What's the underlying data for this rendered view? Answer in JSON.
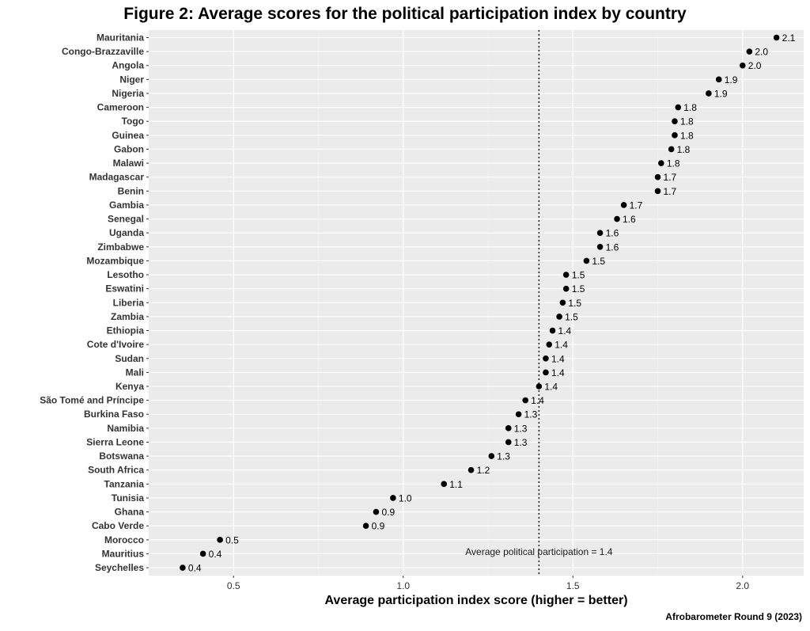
{
  "chart_data": {
    "type": "scatter",
    "title": "Figure 2: Average scores for the political participation index by country",
    "xlabel": "Average participation index score (higher = better)",
    "ylabel": "",
    "xlim": [
      0.25,
      2.18
    ],
    "xticks": [
      0.5,
      1.0,
      1.5,
      2.0
    ],
    "xtick_labels": [
      "0.5",
      "1.0",
      "1.5",
      "2.0"
    ],
    "grid": true,
    "legend": "none",
    "points": [
      {
        "country": "Mauritania",
        "value": 2.1,
        "label": "2.1"
      },
      {
        "country": "Congo-Brazzaville",
        "value": 2.02,
        "label": "2.0"
      },
      {
        "country": "Angola",
        "value": 2.0,
        "label": "2.0"
      },
      {
        "country": "Niger",
        "value": 1.93,
        "label": "1.9"
      },
      {
        "country": "Nigeria",
        "value": 1.9,
        "label": "1.9"
      },
      {
        "country": "Cameroon",
        "value": 1.81,
        "label": "1.8"
      },
      {
        "country": "Togo",
        "value": 1.8,
        "label": "1.8"
      },
      {
        "country": "Guinea",
        "value": 1.8,
        "label": "1.8"
      },
      {
        "country": "Gabon",
        "value": 1.79,
        "label": "1.8"
      },
      {
        "country": "Malawi",
        "value": 1.76,
        "label": "1.8"
      },
      {
        "country": "Madagascar",
        "value": 1.75,
        "label": "1.7"
      },
      {
        "country": "Benin",
        "value": 1.75,
        "label": "1.7"
      },
      {
        "country": "Gambia",
        "value": 1.65,
        "label": "1.7"
      },
      {
        "country": "Senegal",
        "value": 1.63,
        "label": "1.6"
      },
      {
        "country": "Uganda",
        "value": 1.58,
        "label": "1.6"
      },
      {
        "country": "Zimbabwe",
        "value": 1.58,
        "label": "1.6"
      },
      {
        "country": "Mozambique",
        "value": 1.54,
        "label": "1.5"
      },
      {
        "country": "Lesotho",
        "value": 1.48,
        "label": "1.5"
      },
      {
        "country": "Eswatini",
        "value": 1.48,
        "label": "1.5"
      },
      {
        "country": "Liberia",
        "value": 1.47,
        "label": "1.5"
      },
      {
        "country": "Zambia",
        "value": 1.46,
        "label": "1.5"
      },
      {
        "country": "Ethiopia",
        "value": 1.44,
        "label": "1.4"
      },
      {
        "country": "Cote d'Ivoire",
        "value": 1.43,
        "label": "1.4"
      },
      {
        "country": "Sudan",
        "value": 1.42,
        "label": "1.4"
      },
      {
        "country": "Mali",
        "value": 1.42,
        "label": "1.4"
      },
      {
        "country": "Kenya",
        "value": 1.4,
        "label": "1.4"
      },
      {
        "country": "São Tomé and Príncipe",
        "value": 1.36,
        "label": "1.4"
      },
      {
        "country": "Burkina Faso",
        "value": 1.34,
        "label": "1.3"
      },
      {
        "country": "Namibia",
        "value": 1.31,
        "label": "1.3"
      },
      {
        "country": "Sierra Leone",
        "value": 1.31,
        "label": "1.3"
      },
      {
        "country": "Botswana",
        "value": 1.26,
        "label": "1.3"
      },
      {
        "country": "South Africa",
        "value": 1.2,
        "label": "1.2"
      },
      {
        "country": "Tanzania",
        "value": 1.12,
        "label": "1.1"
      },
      {
        "country": "Tunisia",
        "value": 0.97,
        "label": "1.0"
      },
      {
        "country": "Ghana",
        "value": 0.92,
        "label": "0.9"
      },
      {
        "country": "Cabo Verde",
        "value": 0.89,
        "label": "0.9"
      },
      {
        "country": "Morocco",
        "value": 0.46,
        "label": "0.5"
      },
      {
        "country": "Mauritius",
        "value": 0.41,
        "label": "0.4"
      },
      {
        "country": "Seychelles",
        "value": 0.35,
        "label": "0.4"
      }
    ],
    "reference_line": {
      "value": 1.4,
      "style": "dotted",
      "label": "Average political participation = 1.4"
    },
    "source": "Afrobarometer Round 9 (2023)"
  },
  "colors": {
    "panel": "#ebebeb",
    "grid_major": "#ffffff",
    "grid_minor": "#f5f5f5",
    "point": "#000000"
  }
}
